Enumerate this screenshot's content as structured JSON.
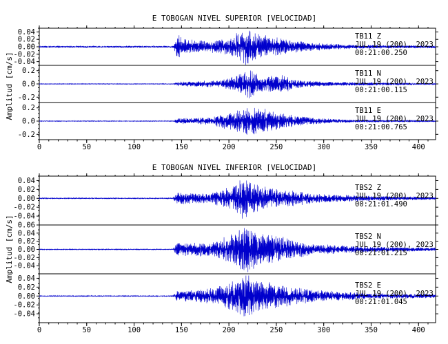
{
  "chart_data": [
    {
      "type": "line",
      "title": "E TOBOGAN NIVEL SUPERIOR [VELOCIDAD]",
      "ylabel": "Amplitud [cm/s]",
      "xlabel": "",
      "xlim": [
        0,
        418
      ],
      "x_ticks": [
        "0",
        "50",
        "100",
        "150",
        "200",
        "250",
        "300",
        "350",
        "400"
      ],
      "line_color": "#0000cc",
      "traces": [
        {
          "station": "TB11",
          "component": "Z",
          "date": "JUL 19 (200), 2023",
          "time": "00:21:00.250",
          "ylim": [
            -0.05,
            0.05
          ],
          "y_ticks": [
            "0.04",
            "0.02",
            "0.00",
            "-0.02",
            "-0.04"
          ],
          "onset_s": 143,
          "envelope": [
            [
              0,
              0.002
            ],
            [
              142,
              0.002
            ],
            [
              145,
              0.035
            ],
            [
              150,
              0.02
            ],
            [
              180,
              0.014
            ],
            [
              200,
              0.02
            ],
            [
              210,
              0.035
            ],
            [
              220,
              0.045
            ],
            [
              235,
              0.03
            ],
            [
              255,
              0.02
            ],
            [
              285,
              0.01
            ],
            [
              330,
              0.005
            ],
            [
              418,
              0.003
            ]
          ]
        },
        {
          "station": "TB11",
          "component": "N",
          "date": "JUL 19 (200), 2023",
          "time": "00:21:00.115",
          "ylim": [
            -0.28,
            0.28
          ],
          "y_ticks": [
            "0.2",
            "0.0",
            "-0.2"
          ],
          "onset_s": 143,
          "envelope": [
            [
              0,
              0.005
            ],
            [
              142,
              0.005
            ],
            [
              145,
              0.03
            ],
            [
              190,
              0.05
            ],
            [
              210,
              0.12
            ],
            [
              222,
              0.22
            ],
            [
              235,
              0.1
            ],
            [
              258,
              0.12
            ],
            [
              270,
              0.06
            ],
            [
              300,
              0.03
            ],
            [
              418,
              0.01
            ]
          ]
        },
        {
          "station": "TB11",
          "component": "E",
          "date": "JUL 19 (200), 2023",
          "time": "00:21:00.765",
          "ylim": [
            -0.28,
            0.28
          ],
          "y_ticks": [
            "0.2",
            "0.0",
            "-0.2"
          ],
          "onset_s": 143,
          "envelope": [
            [
              0,
              0.005
            ],
            [
              142,
              0.005
            ],
            [
              145,
              0.04
            ],
            [
              180,
              0.05
            ],
            [
              200,
              0.12
            ],
            [
              222,
              0.2
            ],
            [
              240,
              0.16
            ],
            [
              260,
              0.1
            ],
            [
              290,
              0.04
            ],
            [
              330,
              0.02
            ],
            [
              418,
              0.01
            ]
          ]
        }
      ]
    },
    {
      "type": "line",
      "title": "E TOBOGAN NIVEL INFERIOR [VELOCIDAD]",
      "ylabel": "Amplitud [cm/s]",
      "xlabel": "",
      "xlim": [
        0,
        418
      ],
      "x_ticks": [
        "0",
        "50",
        "100",
        "150",
        "200",
        "250",
        "300",
        "350",
        "400"
      ],
      "line_color": "#0000cc",
      "traces": [
        {
          "station": "TBS2",
          "component": "Z",
          "date": "JUL 19 (200), 2023",
          "time": "00:21:01.490",
          "ylim": [
            -0.06,
            0.05
          ],
          "y_ticks": [
            "0.04",
            "0.02",
            "0.00",
            "-0.02",
            "-0.04"
          ],
          "onset_s": 142,
          "envelope": [
            [
              0,
              0.001
            ],
            [
              141,
              0.001
            ],
            [
              145,
              0.012
            ],
            [
              180,
              0.01
            ],
            [
              205,
              0.025
            ],
            [
              215,
              0.045
            ],
            [
              225,
              0.03
            ],
            [
              250,
              0.02
            ],
            [
              290,
              0.01
            ],
            [
              350,
              0.005
            ],
            [
              418,
              0.003
            ]
          ]
        },
        {
          "station": "TBS2",
          "component": "N",
          "date": "JUL 19 (200), 2023",
          "time": "00:21:01.215",
          "ylim": [
            -0.06,
            0.06
          ],
          "y_ticks": [
            "0.06",
            "0.04",
            "0.02",
            "0.00",
            "-0.02",
            "-0.04"
          ],
          "onset_s": 142,
          "envelope": [
            [
              0,
              0.001
            ],
            [
              141,
              0.001
            ],
            [
              145,
              0.015
            ],
            [
              180,
              0.015
            ],
            [
              205,
              0.035
            ],
            [
              218,
              0.055
            ],
            [
              235,
              0.035
            ],
            [
              250,
              0.03
            ],
            [
              290,
              0.012
            ],
            [
              350,
              0.006
            ],
            [
              418,
              0.004
            ]
          ]
        },
        {
          "station": "TBS2",
          "component": "E",
          "date": "JUL 19 (200), 2023",
          "time": "00:21:01.045",
          "ylim": [
            -0.06,
            0.05
          ],
          "y_ticks": [
            "0.04",
            "0.02",
            "0.00",
            "-0.02",
            "-0.04"
          ],
          "onset_s": 142,
          "envelope": [
            [
              0,
              0.001
            ],
            [
              141,
              0.001
            ],
            [
              145,
              0.01
            ],
            [
              180,
              0.015
            ],
            [
              205,
              0.03
            ],
            [
              220,
              0.045
            ],
            [
              235,
              0.03
            ],
            [
              250,
              0.025
            ],
            [
              290,
              0.012
            ],
            [
              350,
              0.006
            ],
            [
              418,
              0.004
            ]
          ]
        }
      ]
    }
  ]
}
